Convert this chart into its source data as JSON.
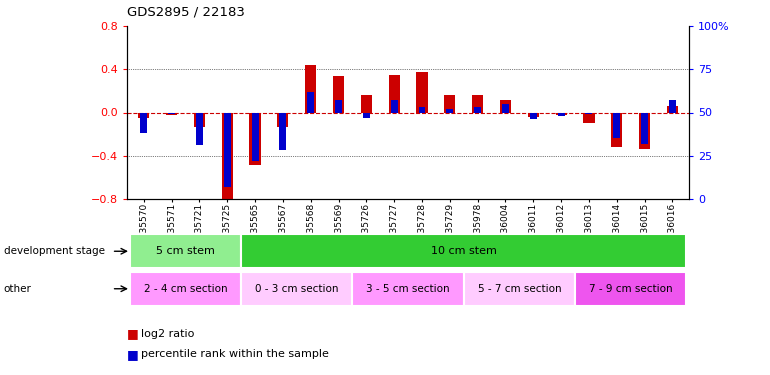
{
  "title": "GDS2895 / 22183",
  "samples": [
    "GSM35570",
    "GSM35571",
    "GSM35721",
    "GSM35725",
    "GSM35565",
    "GSM35567",
    "GSM35568",
    "GSM35569",
    "GSM35726",
    "GSM35727",
    "GSM35728",
    "GSM35729",
    "GSM35978",
    "GSM36004",
    "GSM36011",
    "GSM36012",
    "GSM36013",
    "GSM36014",
    "GSM36015",
    "GSM36016"
  ],
  "log2_ratio": [
    -0.05,
    -0.02,
    -0.13,
    -0.82,
    -0.49,
    -0.13,
    0.44,
    0.34,
    0.16,
    0.35,
    0.38,
    0.16,
    0.16,
    0.12,
    -0.04,
    -0.02,
    -0.1,
    -0.32,
    -0.34,
    0.06
  ],
  "percentile": [
    38,
    49,
    31,
    7,
    22,
    28,
    62,
    57,
    47,
    57,
    53,
    52,
    53,
    55,
    46,
    48,
    49,
    35,
    32,
    57
  ],
  "ylim_left": [
    -0.8,
    0.8
  ],
  "ylim_right": [
    0,
    100
  ],
  "yticks_left": [
    -0.8,
    -0.4,
    0.0,
    0.4,
    0.8
  ],
  "yticks_right": [
    0,
    25,
    50,
    75,
    100
  ],
  "dev_stage_groups": [
    {
      "label": "5 cm stem",
      "start": 0,
      "end": 3,
      "color": "#90ee90"
    },
    {
      "label": "10 cm stem",
      "start": 4,
      "end": 19,
      "color": "#33cc33"
    }
  ],
  "other_groups": [
    {
      "label": "2 - 4 cm section",
      "start": 0,
      "end": 3,
      "color": "#ff99ff"
    },
    {
      "label": "0 - 3 cm section",
      "start": 4,
      "end": 7,
      "color": "#ffccff"
    },
    {
      "label": "3 - 5 cm section",
      "start": 8,
      "end": 11,
      "color": "#ff99ff"
    },
    {
      "label": "5 - 7 cm section",
      "start": 12,
      "end": 15,
      "color": "#ffccff"
    },
    {
      "label": "7 - 9 cm section",
      "start": 16,
      "end": 19,
      "color": "#ee55ee"
    }
  ],
  "bar_color_red": "#cc0000",
  "bar_color_blue": "#0000cc",
  "zero_line_color": "#cc0000",
  "row_label_dev": "development stage",
  "row_label_other": "other",
  "legend_log2": "log2 ratio",
  "legend_pct": "percentile rank within the sample"
}
